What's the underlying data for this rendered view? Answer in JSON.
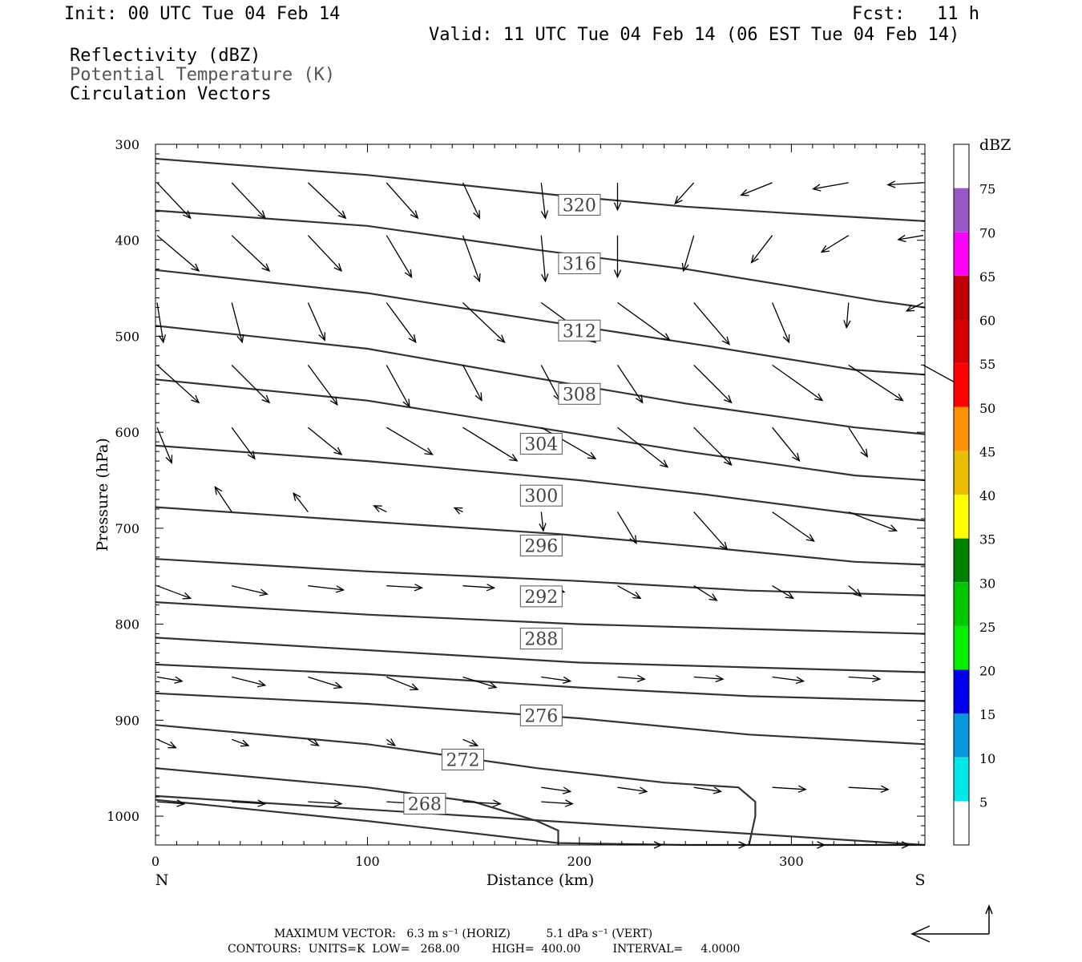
{
  "header": {
    "init": "Init: 00 UTC Tue 04 Feb 14",
    "fcst": "Fcst:   11 h",
    "valid": "Valid: 11 UTC Tue 04 Feb 14 (06 EST Tue 04 Feb 14)",
    "fields": [
      "Reflectivity (dBZ)",
      "Potential Temperature (K)",
      "Circulation Vectors"
    ]
  },
  "footer": {
    "line1": "MAXIMUM VECTOR:   6.3 m s⁻¹ (HORIZ)          5.1 dPa s⁻¹ (VERT)",
    "line2": "CONTOURS:  UNITS=K  LOW=   268.00         HIGH=  400.00         INTERVAL=     4.0000"
  },
  "colors": {
    "contour": "#333333",
    "field2_text": "#555555",
    "colorbar": [
      "#ffffff",
      "#00e8e8",
      "#0898e0",
      "#0000f0",
      "#00f000",
      "#00c800",
      "#008000",
      "#ffff00",
      "#e8c000",
      "#ff9000",
      "#ff0000",
      "#d80000",
      "#c00000",
      "#ff00ff",
      "#9858c8",
      "#ffffff"
    ]
  },
  "chart_data": {
    "type": "cross-section",
    "xlabel": "Distance (km)",
    "ylabel": "Pressure (hPa)",
    "xlim": [
      0,
      363
    ],
    "ylim": [
      300,
      1030
    ],
    "xticks": [
      0,
      100,
      200,
      300
    ],
    "yticks": [
      300,
      400,
      500,
      600,
      700,
      800,
      900,
      1000
    ],
    "x_end_labels": {
      "left": "N",
      "right": "S"
    },
    "colorbar": {
      "unit": "dBZ",
      "labels": [
        5,
        10,
        15,
        20,
        25,
        30,
        35,
        40,
        45,
        50,
        55,
        60,
        65,
        70,
        75
      ]
    },
    "contour_labels": [
      {
        "text": "320",
        "x": 200,
        "p": 363
      },
      {
        "text": "316",
        "x": 200,
        "p": 424
      },
      {
        "text": "312",
        "x": 200,
        "p": 494
      },
      {
        "text": "308",
        "x": 200,
        "p": 560
      },
      {
        "text": "304",
        "x": 182,
        "p": 612
      },
      {
        "text": "300",
        "x": 182,
        "p": 666
      },
      {
        "text": "296",
        "x": 182,
        "p": 718
      },
      {
        "text": "292",
        "x": 182,
        "p": 771
      },
      {
        "text": "288",
        "x": 182,
        "p": 815
      },
      {
        "text": "276",
        "x": 182,
        "p": 895
      },
      {
        "text": "272",
        "x": 145,
        "p": 941
      },
      {
        "text": "268",
        "x": 127,
        "p": 987
      }
    ],
    "contours": [
      {
        "x": [
          0,
          100,
          190,
          250,
          300,
          363
        ],
        "p": [
          315,
          332,
          353,
          365,
          372,
          380
        ]
      },
      {
        "x": [
          0,
          100,
          180,
          250,
          300,
          340,
          363
        ],
        "p": [
          369,
          385,
          410,
          430,
          448,
          463,
          470
        ]
      },
      {
        "x": [
          0,
          100,
          180,
          260,
          330,
          363
        ],
        "p": [
          431,
          455,
          483,
          510,
          535,
          540
        ]
      },
      {
        "x": [
          0,
          100,
          170,
          250,
          330,
          363
        ],
        "p": [
          489,
          513,
          540,
          570,
          595,
          602
        ]
      },
      {
        "x": [
          0,
          100,
          180,
          250,
          330,
          363
        ],
        "p": [
          545,
          567,
          595,
          620,
          645,
          650
        ]
      },
      {
        "x": [
          0,
          100,
          200,
          260,
          330,
          363
        ],
        "p": [
          614,
          630,
          650,
          665,
          685,
          692
        ]
      },
      {
        "x": [
          0,
          100,
          190,
          260,
          330,
          363
        ],
        "p": [
          678,
          693,
          706,
          720,
          735,
          738
        ]
      },
      {
        "x": [
          0,
          100,
          200,
          280,
          363
        ],
        "p": [
          732,
          745,
          755,
          765,
          770
        ]
      },
      {
        "x": [
          0,
          100,
          200,
          280,
          363
        ],
        "p": [
          777,
          790,
          800,
          805,
          810
        ]
      },
      {
        "x": [
          0,
          100,
          200,
          280,
          363
        ],
        "p": [
          814,
          827,
          840,
          845,
          850
        ]
      },
      {
        "x": [
          0,
          100,
          200,
          280,
          363
        ],
        "p": [
          842,
          852,
          866,
          875,
          880
        ]
      },
      {
        "x": [
          0,
          100,
          200,
          280,
          363
        ],
        "p": [
          872,
          883,
          898,
          915,
          925
        ]
      },
      {
        "x": [
          0,
          100,
          180,
          240,
          275,
          283,
          283,
          280
        ],
        "p": [
          905,
          925,
          950,
          965,
          970,
          985,
          1000,
          1030
        ]
      },
      {
        "x": [
          0,
          100,
          150,
          180,
          190,
          190
        ],
        "p": [
          950,
          970,
          985,
          1005,
          1015,
          1030
        ]
      },
      {
        "x": [
          0,
          100,
          190,
          250,
          363
        ],
        "p": [
          983,
          1005,
          1028,
          1030,
          1030
        ]
      },
      {
        "x": [
          0,
          363
        ],
        "p": [
          979,
          1030
        ]
      }
    ],
    "vectors": [
      {
        "x": 0,
        "p": 340,
        "u": 16,
        "v": 17
      },
      {
        "x": 36,
        "p": 340,
        "u": 16,
        "v": 17
      },
      {
        "x": 72,
        "p": 340,
        "u": 18,
        "v": 17
      },
      {
        "x": 109,
        "p": 340,
        "u": 15,
        "v": 17
      },
      {
        "x": 145,
        "p": 340,
        "u": 8,
        "v": 17
      },
      {
        "x": 182,
        "p": 340,
        "u": 2,
        "v": 17
      },
      {
        "x": 218,
        "p": 340,
        "u": 0,
        "v": 13
      },
      {
        "x": 254,
        "p": 340,
        "u": -9,
        "v": 10
      },
      {
        "x": 291,
        "p": 340,
        "u": -15,
        "v": 6
      },
      {
        "x": 327,
        "p": 340,
        "u": -17,
        "v": 3
      },
      {
        "x": 363,
        "p": 340,
        "u": -17,
        "v": 1
      },
      {
        "x": 0,
        "p": 395,
        "u": 20,
        "v": 17
      },
      {
        "x": 36,
        "p": 395,
        "u": 18,
        "v": 17
      },
      {
        "x": 72,
        "p": 395,
        "u": 16,
        "v": 17
      },
      {
        "x": 109,
        "p": 395,
        "u": 12,
        "v": 20
      },
      {
        "x": 145,
        "p": 395,
        "u": 8,
        "v": 22
      },
      {
        "x": 182,
        "p": 395,
        "u": 2,
        "v": 22
      },
      {
        "x": 218,
        "p": 395,
        "u": 0,
        "v": 20
      },
      {
        "x": 254,
        "p": 395,
        "u": -5,
        "v": 17
      },
      {
        "x": 291,
        "p": 395,
        "u": -10,
        "v": 13
      },
      {
        "x": 327,
        "p": 395,
        "u": -13,
        "v": 8
      },
      {
        "x": 363,
        "p": 395,
        "u": -12,
        "v": 2
      },
      {
        "x": 0,
        "p": 465,
        "u": 3,
        "v": 19
      },
      {
        "x": 36,
        "p": 465,
        "u": 5,
        "v": 19
      },
      {
        "x": 72,
        "p": 465,
        "u": 8,
        "v": 18
      },
      {
        "x": 109,
        "p": 465,
        "u": 14,
        "v": 19
      },
      {
        "x": 145,
        "p": 465,
        "u": 20,
        "v": 19
      },
      {
        "x": 182,
        "p": 465,
        "u": 26,
        "v": 19
      },
      {
        "x": 218,
        "p": 465,
        "u": 25,
        "v": 18
      },
      {
        "x": 254,
        "p": 465,
        "u": 17,
        "v": 20
      },
      {
        "x": 291,
        "p": 465,
        "u": 8,
        "v": 19
      },
      {
        "x": 327,
        "p": 465,
        "u": -1,
        "v": 12
      },
      {
        "x": 363,
        "p": 465,
        "u": -8,
        "v": 4
      },
      {
        "x": 0,
        "p": 530,
        "u": 20,
        "v": 18
      },
      {
        "x": 36,
        "p": 530,
        "u": 18,
        "v": 18
      },
      {
        "x": 72,
        "p": 530,
        "u": 14,
        "v": 19
      },
      {
        "x": 109,
        "p": 530,
        "u": 11,
        "v": 20
      },
      {
        "x": 145,
        "p": 530,
        "u": 9,
        "v": 17
      },
      {
        "x": 182,
        "p": 530,
        "u": 9,
        "v": 17
      },
      {
        "x": 218,
        "p": 530,
        "u": 12,
        "v": 18
      },
      {
        "x": 254,
        "p": 530,
        "u": 18,
        "v": 18
      },
      {
        "x": 291,
        "p": 530,
        "u": 24,
        "v": 17
      },
      {
        "x": 327,
        "p": 530,
        "u": 26,
        "v": 17
      },
      {
        "x": 363,
        "p": 530,
        "u": 20,
        "v": 11
      },
      {
        "x": 0,
        "p": 595,
        "u": 7,
        "v": 17
      },
      {
        "x": 36,
        "p": 595,
        "u": 11,
        "v": 15
      },
      {
        "x": 72,
        "p": 595,
        "u": 16,
        "v": 13
      },
      {
        "x": 109,
        "p": 595,
        "u": 22,
        "v": 13
      },
      {
        "x": 145,
        "p": 595,
        "u": 26,
        "v": 16
      },
      {
        "x": 182,
        "p": 595,
        "u": 26,
        "v": 15
      },
      {
        "x": 218,
        "p": 595,
        "u": 24,
        "v": 19
      },
      {
        "x": 254,
        "p": 595,
        "u": 18,
        "v": 18
      },
      {
        "x": 291,
        "p": 595,
        "u": 13,
        "v": 16
      },
      {
        "x": 327,
        "p": 595,
        "u": 9,
        "v": 14
      },
      {
        "x": 363,
        "p": 595,
        "u": 0,
        "v": 0
      },
      {
        "x": 0,
        "p": 683,
        "u": 0,
        "v": 0
      },
      {
        "x": 36,
        "p": 683,
        "u": -8,
        "v": -12
      },
      {
        "x": 72,
        "p": 683,
        "u": -7,
        "v": -9
      },
      {
        "x": 109,
        "p": 683,
        "u": -6,
        "v": -3
      },
      {
        "x": 145,
        "p": 683,
        "u": -4,
        "v": -2
      },
      {
        "x": 182,
        "p": 683,
        "u": 1,
        "v": 9
      },
      {
        "x": 218,
        "p": 683,
        "u": 9,
        "v": 15
      },
      {
        "x": 254,
        "p": 683,
        "u": 16,
        "v": 18
      },
      {
        "x": 291,
        "p": 683,
        "u": 20,
        "v": 14
      },
      {
        "x": 327,
        "p": 683,
        "u": 23,
        "v": 9
      },
      {
        "x": 363,
        "p": 683,
        "u": 0,
        "v": 0
      },
      {
        "x": 0,
        "p": 760,
        "u": 16,
        "v": 6
      },
      {
        "x": 36,
        "p": 760,
        "u": 17,
        "v": 4
      },
      {
        "x": 72,
        "p": 760,
        "u": 17,
        "v": 2
      },
      {
        "x": 109,
        "p": 760,
        "u": 17,
        "v": 1
      },
      {
        "x": 145,
        "p": 760,
        "u": 15,
        "v": 1
      },
      {
        "x": 182,
        "p": 760,
        "u": 11,
        "v": 3
      },
      {
        "x": 218,
        "p": 760,
        "u": 11,
        "v": 6
      },
      {
        "x": 254,
        "p": 760,
        "u": 11,
        "v": 7
      },
      {
        "x": 291,
        "p": 760,
        "u": 10,
        "v": 6
      },
      {
        "x": 327,
        "p": 760,
        "u": 6,
        "v": 5
      },
      {
        "x": 363,
        "p": 760,
        "u": 0,
        "v": 0
      },
      {
        "x": 0,
        "p": 855,
        "u": 12,
        "v": 2
      },
      {
        "x": 36,
        "p": 855,
        "u": 16,
        "v": 4
      },
      {
        "x": 72,
        "p": 855,
        "u": 16,
        "v": 5
      },
      {
        "x": 109,
        "p": 855,
        "u": 15,
        "v": 6
      },
      {
        "x": 145,
        "p": 855,
        "u": 16,
        "v": 5
      },
      {
        "x": 182,
        "p": 855,
        "u": 14,
        "v": 2
      },
      {
        "x": 218,
        "p": 855,
        "u": 13,
        "v": 1
      },
      {
        "x": 254,
        "p": 855,
        "u": 14,
        "v": 1
      },
      {
        "x": 291,
        "p": 855,
        "u": 15,
        "v": 2
      },
      {
        "x": 327,
        "p": 855,
        "u": 15,
        "v": 1
      },
      {
        "x": 363,
        "p": 855,
        "u": 0,
        "v": 0
      },
      {
        "x": 0,
        "p": 920,
        "u": 9,
        "v": 4
      },
      {
        "x": 36,
        "p": 920,
        "u": 8,
        "v": 3
      },
      {
        "x": 72,
        "p": 920,
        "u": 5,
        "v": 3
      },
      {
        "x": 109,
        "p": 920,
        "u": 4,
        "v": 3
      },
      {
        "x": 145,
        "p": 920,
        "u": 7,
        "v": 3
      },
      {
        "x": 182,
        "p": 920,
        "u": 0,
        "v": 0
      },
      {
        "x": 218,
        "p": 920,
        "u": 0,
        "v": 0
      },
      {
        "x": 254,
        "p": 920,
        "u": 0,
        "v": 0
      },
      {
        "x": 291,
        "p": 920,
        "u": 0,
        "v": 0
      },
      {
        "x": 327,
        "p": 920,
        "u": 0,
        "v": 0
      },
      {
        "x": 363,
        "p": 920,
        "u": 0,
        "v": 0
      },
      {
        "x": 182,
        "p": 970,
        "u": 14,
        "v": 2
      },
      {
        "x": 218,
        "p": 970,
        "u": 14,
        "v": 2
      },
      {
        "x": 254,
        "p": 970,
        "u": 13,
        "v": 2
      },
      {
        "x": 291,
        "p": 970,
        "u": 16,
        "v": 1
      },
      {
        "x": 327,
        "p": 970,
        "u": 19,
        "v": 1
      },
      {
        "x": 0,
        "p": 985,
        "u": 13,
        "v": 1
      },
      {
        "x": 36,
        "p": 985,
        "u": 16,
        "v": 1
      },
      {
        "x": 72,
        "p": 985,
        "u": 16,
        "v": 1
      },
      {
        "x": 109,
        "p": 985,
        "u": 16,
        "v": 1
      },
      {
        "x": 145,
        "p": 985,
        "u": 18,
        "v": 1
      },
      {
        "x": 182,
        "p": 985,
        "u": 15,
        "v": 1
      },
      {
        "x": 218,
        "p": 1030,
        "u": 21,
        "v": 0
      },
      {
        "x": 254,
        "p": 1030,
        "u": 25,
        "v": 0
      },
      {
        "x": 291,
        "p": 1030,
        "u": 25,
        "v": 0
      },
      {
        "x": 327,
        "p": 1030,
        "u": 29,
        "v": 0
      }
    ]
  }
}
